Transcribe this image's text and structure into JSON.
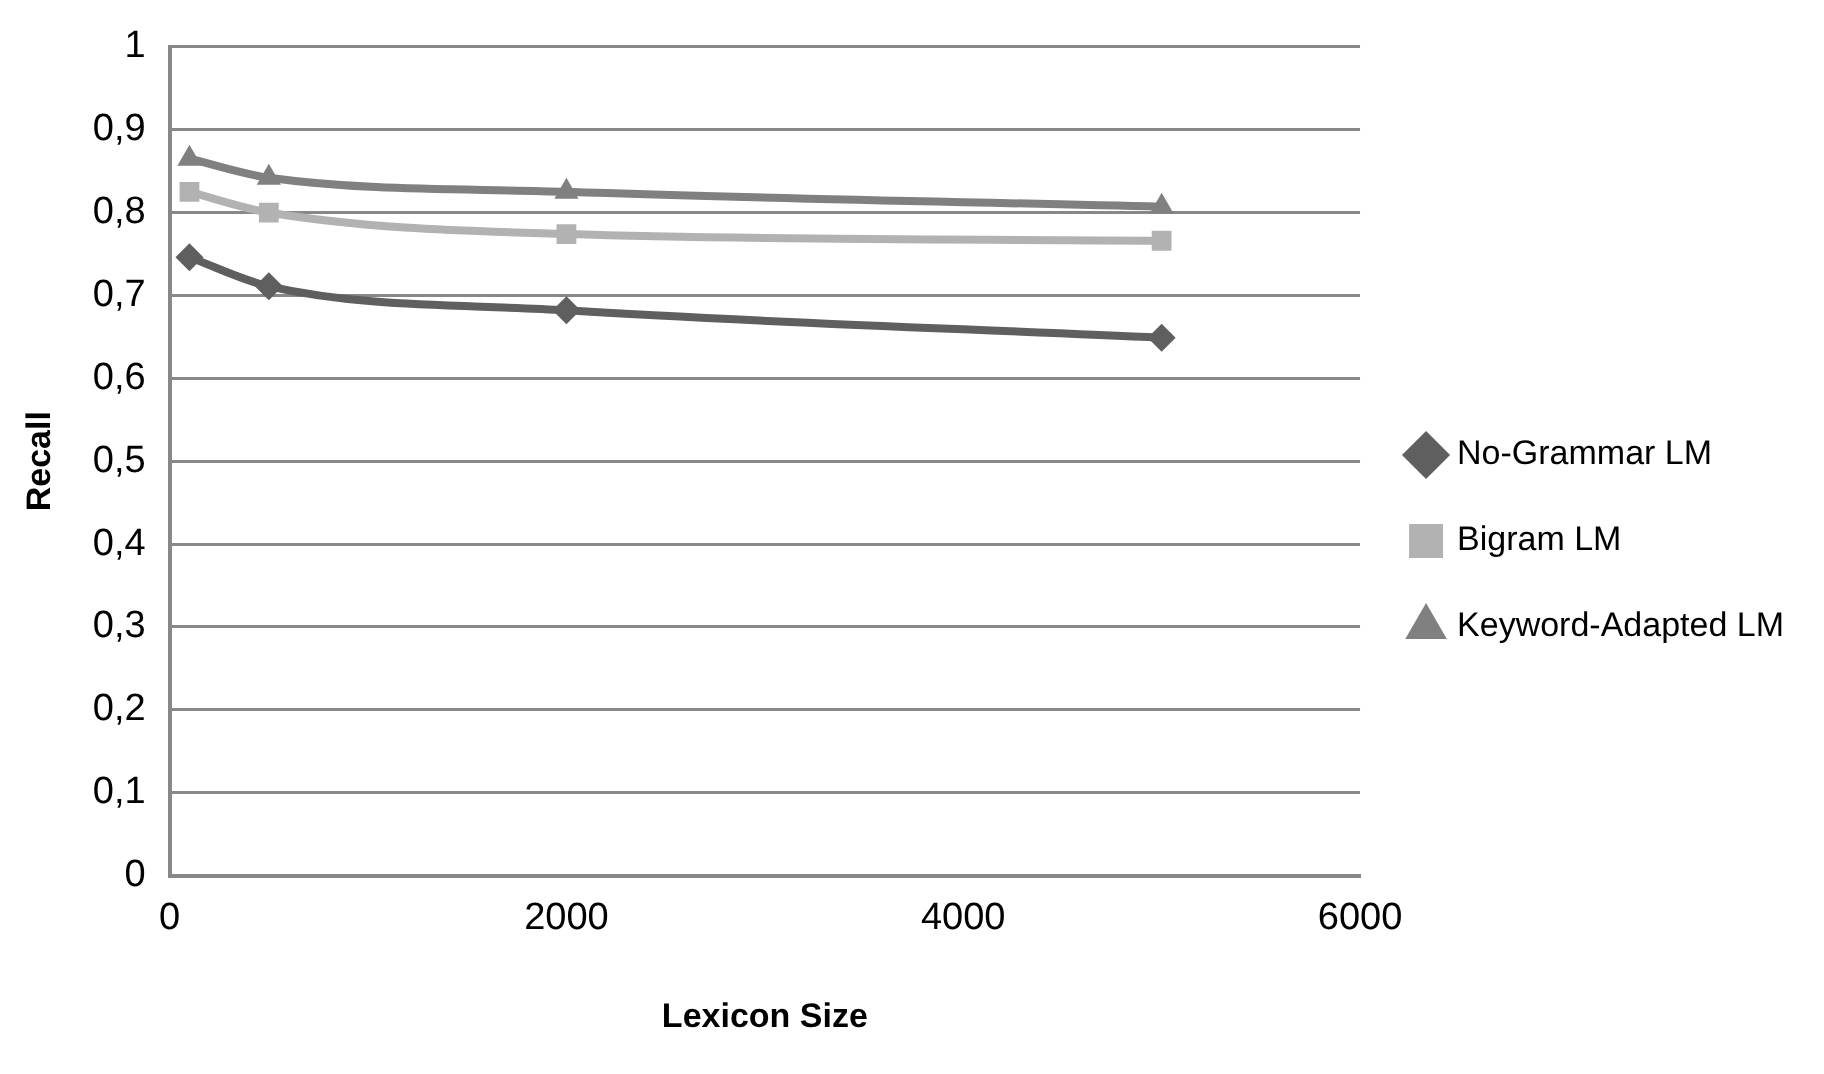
{
  "chart_data": {
    "type": "line",
    "xlabel": "Lexicon Size",
    "ylabel": "Recall",
    "x": [
      100,
      500,
      2000,
      5000
    ],
    "series": [
      {
        "name": "No-Grammar LM",
        "color": "#5f5f5f",
        "marker": "diamond",
        "values": [
          0.746,
          0.711,
          0.682,
          0.649
        ]
      },
      {
        "name": "Bigram LM",
        "color": "#b2b2b2",
        "marker": "square",
        "values": [
          0.825,
          0.8,
          0.774,
          0.766
        ]
      },
      {
        "name": "Keyword-Adapted LM",
        "color": "#808080",
        "marker": "triangle",
        "values": [
          0.865,
          0.842,
          0.825,
          0.807
        ]
      }
    ],
    "xlim": [
      0,
      6000
    ],
    "xticks": [
      0,
      2000,
      4000,
      6000
    ],
    "ylim": [
      0,
      1
    ],
    "yticks": [
      0,
      {
        "value": 0.1,
        "label": "0,1"
      },
      {
        "value": 0.2,
        "label": "0,2"
      },
      {
        "value": 0.3,
        "label": "0,3"
      },
      {
        "value": 0.4,
        "label": "0,4"
      },
      {
        "value": 0.5,
        "label": "0,5"
      },
      {
        "value": 0.6,
        "label": "0,6"
      },
      {
        "value": 0.7,
        "label": "0,7"
      },
      {
        "value": 0.8,
        "label": "0,8"
      },
      {
        "value": 0.9,
        "label": "0,9"
      },
      1
    ],
    "grid": "y",
    "legend": "right"
  }
}
